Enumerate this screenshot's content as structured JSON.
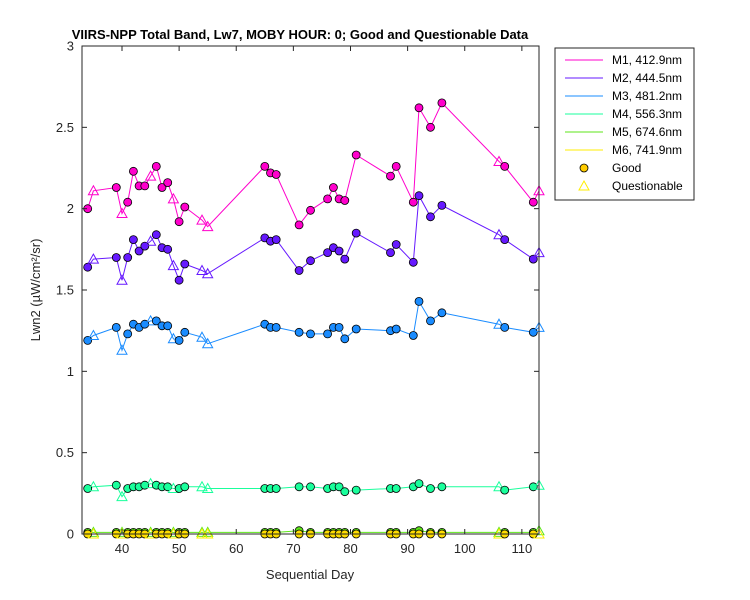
{
  "chart_data": {
    "type": "line",
    "title": "VIIRS-NPP Total Band, Lw7, MOBY HOUR: 0;  Good and Questionable Data",
    "xlabel": "Sequential Day",
    "ylabel": "Lwn2 (µW/cm²/sr)",
    "xlim": [
      33,
      113
    ],
    "ylim": [
      0,
      3
    ],
    "xticks": [
      40,
      50,
      60,
      70,
      80,
      90,
      100,
      110
    ],
    "yticks": [
      0,
      0.5,
      1,
      1.5,
      2,
      2.5,
      3
    ],
    "ytick_labels": [
      "0",
      "0.5",
      "1",
      "1.5",
      "2",
      "2.5",
      "3"
    ],
    "x": [
      34,
      35,
      39,
      40,
      41,
      42,
      43,
      44,
      45,
      46,
      47,
      48,
      49,
      50,
      51,
      54,
      55,
      65,
      66,
      67,
      71,
      73,
      76,
      77,
      78,
      79,
      81,
      87,
      88,
      91,
      92,
      94,
      96,
      106,
      107,
      112,
      113
    ],
    "quality": [
      "G",
      "Q",
      "G",
      "Q",
      "G",
      "G",
      "G",
      "G",
      "Q",
      "G",
      "G",
      "G",
      "Q",
      "G",
      "G",
      "Q",
      "Q",
      "G",
      "G",
      "G",
      "G",
      "G",
      "G",
      "G",
      "G",
      "G",
      "G",
      "G",
      "G",
      "G",
      "G",
      "G",
      "G",
      "Q",
      "G",
      "G",
      "Q"
    ],
    "series": [
      {
        "name": "M1, 412.9nm",
        "color": "#ff00cc",
        "fill": "#ff00cc",
        "values": [
          2.0,
          2.11,
          2.13,
          1.97,
          2.04,
          2.23,
          2.14,
          2.14,
          2.2,
          2.26,
          2.13,
          2.16,
          2.06,
          1.92,
          2.01,
          1.93,
          1.89,
          2.26,
          2.22,
          2.21,
          1.9,
          1.99,
          2.06,
          2.13,
          2.06,
          2.05,
          2.33,
          2.2,
          2.26,
          2.04,
          2.62,
          2.5,
          2.65,
          2.29,
          2.26,
          2.04,
          2.11
        ]
      },
      {
        "name": "M2, 444.5nm",
        "color": "#6619ff",
        "fill": "#6619ff",
        "values": [
          1.64,
          1.69,
          1.7,
          1.56,
          1.7,
          1.81,
          1.74,
          1.77,
          1.8,
          1.84,
          1.76,
          1.75,
          1.65,
          1.56,
          1.66,
          1.62,
          1.6,
          1.82,
          1.8,
          1.81,
          1.62,
          1.68,
          1.73,
          1.76,
          1.74,
          1.69,
          1.85,
          1.73,
          1.78,
          1.67,
          2.08,
          1.95,
          2.02,
          1.84,
          1.81,
          1.69,
          1.73
        ]
      },
      {
        "name": "M3, 481.2nm",
        "color": "#1a8cff",
        "fill": "#1a8cff",
        "values": [
          1.19,
          1.22,
          1.27,
          1.13,
          1.23,
          1.29,
          1.27,
          1.29,
          1.31,
          1.31,
          1.28,
          1.28,
          1.2,
          1.19,
          1.24,
          1.21,
          1.17,
          1.29,
          1.27,
          1.27,
          1.24,
          1.23,
          1.23,
          1.27,
          1.27,
          1.2,
          1.26,
          1.25,
          1.26,
          1.22,
          1.43,
          1.31,
          1.36,
          1.29,
          1.27,
          1.24,
          1.27
        ]
      },
      {
        "name": "M4, 556.3nm",
        "color": "#1aff9c",
        "fill": "#1aff9c",
        "values": [
          0.28,
          0.29,
          0.3,
          0.23,
          0.28,
          0.29,
          0.29,
          0.3,
          0.31,
          0.3,
          0.29,
          0.29,
          0.28,
          0.28,
          0.29,
          0.29,
          0.28,
          0.28,
          0.28,
          0.28,
          0.29,
          0.29,
          0.28,
          0.29,
          0.29,
          0.26,
          0.27,
          0.28,
          0.28,
          0.29,
          0.31,
          0.28,
          0.29,
          0.29,
          0.27,
          0.29,
          0.3
        ]
      },
      {
        "name": "M5, 674.6nm",
        "color": "#5ee61a",
        "fill": "#5ee61a",
        "values": [
          0.01,
          0.01,
          0.01,
          0.01,
          0.01,
          0.01,
          0.01,
          0.01,
          0.01,
          0.01,
          0.01,
          0.01,
          0.01,
          0.01,
          0.01,
          0.01,
          0.01,
          0.01,
          0.01,
          0.01,
          0.02,
          0.01,
          0.01,
          0.01,
          0.01,
          0.01,
          0.01,
          0.01,
          0.01,
          0.01,
          0.02,
          0.01,
          0.01,
          0.01,
          0.01,
          0.01,
          0.02
        ]
      },
      {
        "name": "M6, 741.9nm",
        "color": "#ffee00",
        "fill": "#ffdd00",
        "values": [
          0.0,
          0.0,
          0.0,
          0.0,
          0.0,
          0.0,
          0.0,
          0.0,
          0.0,
          0.0,
          0.0,
          0.0,
          0.0,
          0.0,
          0.0,
          0.0,
          0.0,
          0.0,
          0.0,
          0.0,
          0.0,
          0.0,
          0.0,
          0.0,
          0.0,
          0.0,
          0.0,
          0.0,
          0.0,
          0.0,
          0.0,
          0.0,
          0.0,
          0.0,
          0.0,
          0.0,
          0.0
        ]
      }
    ],
    "legend": {
      "position": "outside-top-right",
      "marker_entries": [
        {
          "label": "Good",
          "marker": "circle",
          "color": "#ffcc00"
        },
        {
          "label": "Questionable",
          "marker": "triangle",
          "color": "#ffee00"
        }
      ]
    },
    "grid": false
  }
}
